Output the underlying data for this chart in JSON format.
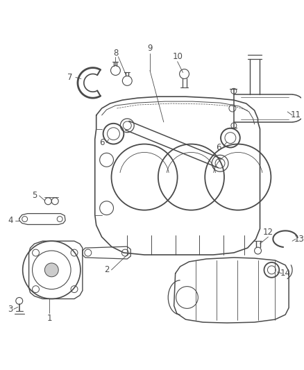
{
  "bg_color": "#ffffff",
  "line_color": "#4a4a4a",
  "label_color": "#4a4a4a",
  "figsize": [
    4.38,
    5.33
  ],
  "dpi": 100
}
